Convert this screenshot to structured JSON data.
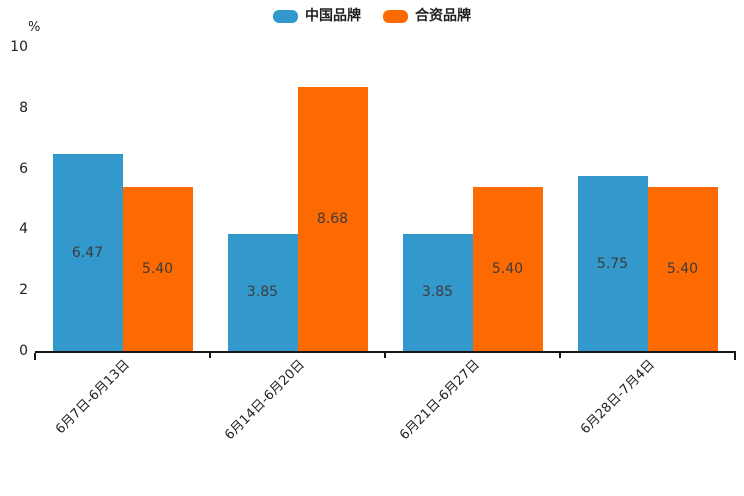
{
  "chart": {
    "axis_color": "#141414",
    "tick_label_color": "#1f1f1f",
    "value_label_color": "#3c3c3c",
    "background": "#ffffff"
  },
  "chart_data": {
    "type": "bar",
    "title": "",
    "categories": [
      "6月7日-6月13日",
      "6月14日-6月20日",
      "6月21日-6月27日",
      "6月28日-7月4日"
    ],
    "series": [
      {
        "name": "中国品牌",
        "color": "#3398cc",
        "values": [
          6.47,
          3.85,
          3.85,
          5.75
        ]
      },
      {
        "name": "合资品牌",
        "color": "#fd6a02",
        "values": [
          5.4,
          8.68,
          5.4,
          5.4
        ]
      }
    ],
    "value_labels": [
      [
        "6.47",
        "3.85",
        "3.85",
        "5.75"
      ],
      [
        "5.40",
        "8.68",
        "5.40",
        "5.40"
      ]
    ],
    "xlabel": "",
    "ylabel": "%",
    "ylim": [
      0,
      10
    ],
    "yticks": [
      "0",
      "2",
      "4",
      "6",
      "8",
      "10"
    ],
    "legend_position": "top-center",
    "grid": false,
    "bar_value_labels_shown": true
  }
}
